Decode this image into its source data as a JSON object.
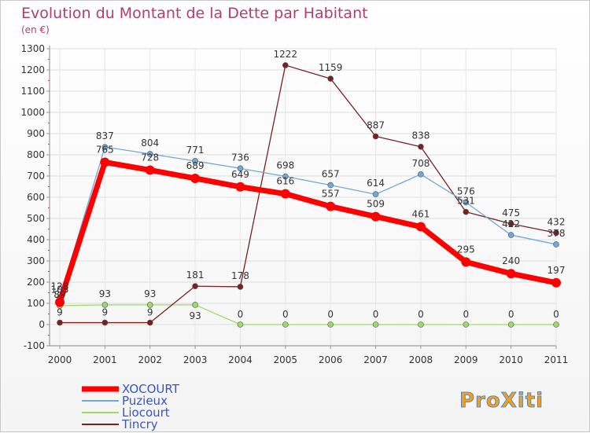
{
  "chart_data": {
    "type": "line",
    "title": "Evolution du Montant de la Dette par Habitant",
    "subtitle": "(en €)",
    "x": [
      "2000",
      "2001",
      "2002",
      "2003",
      "2004",
      "2005",
      "2006",
      "2007",
      "2008",
      "2009",
      "2010",
      "2011"
    ],
    "ylim": [
      -100,
      1300
    ],
    "yticks": [
      "-100",
      "0",
      "100",
      "200",
      "300",
      "400",
      "500",
      "600",
      "700",
      "800",
      "900",
      "1000",
      "1100",
      "1200",
      "1300"
    ],
    "grid": true,
    "legend_position": "bottom-left",
    "series": [
      {
        "name": "XOCOURT",
        "color": "#ff0000",
        "values": [
          105,
          765,
          728,
          689,
          649,
          616,
          557,
          509,
          461,
          295,
          240,
          197
        ],
        "labels": [
          "105",
          "765",
          "728",
          "689",
          "649",
          "616",
          "557",
          "509",
          "461",
          "295",
          "240",
          "197"
        ]
      },
      {
        "name": "Puzieux",
        "color": "#6fa8dc",
        "values": [
          128,
          837,
          804,
          771,
          736,
          698,
          657,
          614,
          708,
          576,
          422,
          378
        ],
        "labels": [
          "128",
          "837",
          "804",
          "771",
          "736",
          "698",
          "657",
          "614",
          "708",
          "576",
          "422",
          "378"
        ]
      },
      {
        "name": "Liocourt",
        "color": "#99dd66",
        "values": [
          89,
          93,
          93,
          93,
          0,
          0,
          0,
          0,
          0,
          0,
          0,
          0
        ],
        "labels": [
          "89",
          "93",
          "93",
          "93",
          "0",
          "0",
          "0",
          "0",
          "0",
          "0",
          "0",
          "0"
        ]
      },
      {
        "name": "Tincry",
        "color": "#7b2020",
        "values": [
          9,
          9,
          9,
          181,
          178,
          1222,
          1159,
          887,
          838,
          531,
          475,
          432
        ],
        "labels": [
          "9",
          "9",
          "9",
          "181",
          "178",
          "1222",
          "1159",
          "887",
          "838",
          "531",
          "475",
          "432"
        ]
      }
    ]
  },
  "logo": {
    "text": "ProXiti"
  }
}
